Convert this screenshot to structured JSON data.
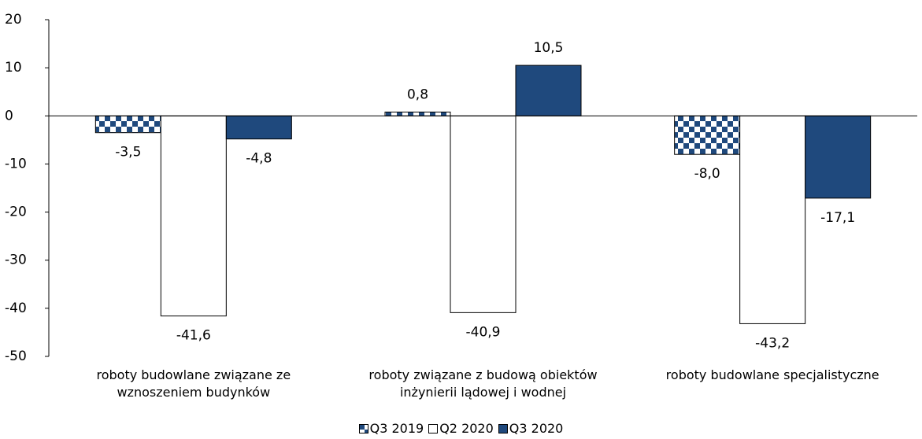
{
  "chart_data": {
    "type": "bar",
    "categories": [
      "roboty budowlane związane ze wznoszeniem budynków",
      "roboty związane z budową obiektów inżynierii lądowej i wodnej",
      "roboty budowlane specjalistyczne"
    ],
    "series": [
      {
        "name": "Q3 2019",
        "color": "#1f497d",
        "pattern": "checker",
        "values": [
          -3.5,
          0.8,
          -8.0
        ],
        "value_labels": [
          "-3,5",
          "0,8",
          "-8,0"
        ]
      },
      {
        "name": "Q2 2020",
        "color": "#ffffff",
        "values": [
          -41.6,
          -40.9,
          -43.2
        ],
        "value_labels": [
          "-41,6",
          "-40,9",
          "-43,2"
        ]
      },
      {
        "name": "Q3 2020",
        "color": "#1f497d",
        "values": [
          -4.8,
          10.5,
          -17.1
        ],
        "value_labels": [
          "-4,8",
          "10,5",
          "-17,1"
        ]
      }
    ],
    "ylim": [
      -50,
      20
    ],
    "yticks": [
      -50,
      -40,
      -30,
      -20,
      -10,
      0,
      10,
      20
    ],
    "grid": false,
    "legend": "bottom"
  }
}
